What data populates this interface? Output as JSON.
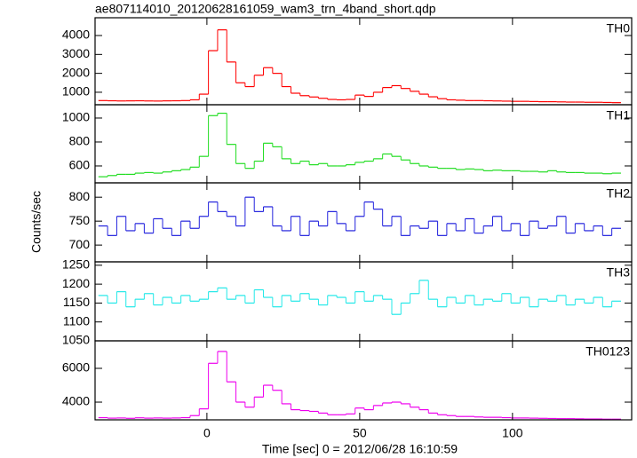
{
  "title": "ae807114010_20120628161059_wam3_trn_4band_short.qdp",
  "xlabel": "Time [sec] 0 = 2012/06/28 16:10:59",
  "ylabel": "Counts/sec",
  "chart_data": [
    {
      "type": "line",
      "annotation": "TH0",
      "color": "#ff0000",
      "xlim": [
        -36.6,
        139
      ],
      "ylim": [
        340,
        4940
      ],
      "yticks": [
        1000,
        2000,
        3000,
        4000
      ],
      "x": [
        -34,
        -31,
        -28,
        -25,
        -22,
        -19,
        -16,
        -13,
        -10,
        -7,
        -4,
        -1,
        2,
        5,
        8,
        11,
        14,
        17,
        20,
        23,
        26,
        29,
        32,
        35,
        38,
        41,
        44,
        47,
        50,
        53,
        56,
        59,
        62,
        65,
        68,
        71,
        74,
        77,
        80,
        83,
        86,
        89,
        92,
        95,
        98,
        101,
        104,
        107,
        110,
        113,
        116,
        119,
        122,
        125,
        128,
        131,
        134
      ],
      "values": [
        560,
        550,
        540,
        545,
        550,
        540,
        535,
        545,
        550,
        560,
        600,
        900,
        3200,
        4300,
        2600,
        1500,
        1300,
        1900,
        2300,
        2000,
        1300,
        950,
        820,
        750,
        680,
        620,
        600,
        620,
        850,
        780,
        1000,
        1250,
        1350,
        1200,
        1050,
        900,
        760,
        660,
        600,
        580,
        560,
        560,
        550,
        540,
        530,
        520,
        520,
        510,
        500,
        500,
        490,
        480,
        480,
        470,
        470,
        460,
        450
      ]
    },
    {
      "type": "line",
      "annotation": "TH1",
      "color": "#22dd22",
      "xlim": [
        -36.6,
        139
      ],
      "ylim": [
        459,
        1111
      ],
      "yticks": [
        600,
        800,
        1000
      ],
      "x": [
        -34,
        -31,
        -28,
        -25,
        -22,
        -19,
        -16,
        -13,
        -10,
        -7,
        -4,
        -1,
        2,
        5,
        8,
        11,
        14,
        17,
        20,
        23,
        26,
        29,
        32,
        35,
        38,
        41,
        44,
        47,
        50,
        53,
        56,
        59,
        62,
        65,
        68,
        71,
        74,
        77,
        80,
        83,
        86,
        89,
        92,
        95,
        98,
        101,
        104,
        107,
        110,
        113,
        116,
        119,
        122,
        125,
        128,
        131,
        134
      ],
      "values": [
        510,
        520,
        530,
        530,
        540,
        545,
        540,
        550,
        560,
        570,
        590,
        680,
        1020,
        1040,
        780,
        620,
        580,
        640,
        790,
        760,
        660,
        620,
        640,
        610,
        620,
        600,
        600,
        610,
        630,
        640,
        660,
        700,
        680,
        650,
        620,
        600,
        590,
        580,
        580,
        570,
        575,
        570,
        560,
        565,
        560,
        560,
        555,
        555,
        550,
        560,
        550,
        545,
        545,
        540,
        540,
        535,
        540
      ]
    },
    {
      "type": "line",
      "annotation": "TH2",
      "color": "#2222dd",
      "xlim": [
        -36.6,
        139
      ],
      "ylim": [
        665,
        830
      ],
      "yticks": [
        700,
        750,
        800
      ],
      "x": [
        -34,
        -31,
        -28,
        -25,
        -22,
        -19,
        -16,
        -13,
        -10,
        -7,
        -4,
        -1,
        2,
        5,
        8,
        11,
        14,
        17,
        20,
        23,
        26,
        29,
        32,
        35,
        38,
        41,
        44,
        47,
        50,
        53,
        56,
        59,
        62,
        65,
        68,
        71,
        74,
        77,
        80,
        83,
        86,
        89,
        92,
        95,
        98,
        101,
        104,
        107,
        110,
        113,
        116,
        119,
        122,
        125,
        128,
        131,
        134
      ],
      "values": [
        740,
        720,
        760,
        730,
        745,
        725,
        755,
        735,
        720,
        750,
        735,
        760,
        790,
        770,
        760,
        740,
        800,
        770,
        780,
        740,
        730,
        760,
        720,
        750,
        740,
        770,
        745,
        730,
        760,
        790,
        775,
        740,
        760,
        720,
        740,
        735,
        750,
        720,
        745,
        730,
        755,
        725,
        740,
        760,
        730,
        745,
        720,
        750,
        735,
        740,
        760,
        725,
        745,
        730,
        740,
        720,
        735
      ]
    },
    {
      "type": "line",
      "annotation": "TH3",
      "color": "#22e8e8",
      "xlim": [
        -36.6,
        139
      ],
      "ylim": [
        1050,
        1259
      ],
      "yticks": [
        1050,
        1100,
        1150,
        1200,
        1250
      ],
      "x": [
        -34,
        -31,
        -28,
        -25,
        -22,
        -19,
        -16,
        -13,
        -10,
        -7,
        -4,
        -1,
        2,
        5,
        8,
        11,
        14,
        17,
        20,
        23,
        26,
        29,
        32,
        35,
        38,
        41,
        44,
        47,
        50,
        53,
        56,
        59,
        62,
        65,
        68,
        71,
        74,
        77,
        80,
        83,
        86,
        89,
        92,
        95,
        98,
        101,
        104,
        107,
        110,
        113,
        116,
        119,
        122,
        125,
        128,
        131,
        134
      ],
      "values": [
        1170,
        1150,
        1180,
        1140,
        1160,
        1175,
        1145,
        1165,
        1150,
        1170,
        1155,
        1160,
        1180,
        1190,
        1160,
        1170,
        1150,
        1185,
        1165,
        1140,
        1170,
        1155,
        1175,
        1160,
        1145,
        1170,
        1165,
        1150,
        1180,
        1155,
        1170,
        1160,
        1120,
        1150,
        1175,
        1210,
        1160,
        1140,
        1165,
        1150,
        1170,
        1145,
        1160,
        1155,
        1175,
        1150,
        1165,
        1140,
        1160,
        1155,
        1170,
        1145,
        1160,
        1150,
        1165,
        1140,
        1155
      ]
    },
    {
      "type": "line",
      "annotation": "TH0123",
      "color": "#ee00ee",
      "xlim": [
        -36.6,
        139
      ],
      "ylim": [
        2950,
        7630
      ],
      "yticks": [
        4000,
        6000
      ],
      "xticks": [
        0,
        50,
        100
      ],
      "x": [
        -34,
        -31,
        -28,
        -25,
        -22,
        -19,
        -16,
        -13,
        -10,
        -7,
        -4,
        -1,
        2,
        5,
        8,
        11,
        14,
        17,
        20,
        23,
        26,
        29,
        32,
        35,
        38,
        41,
        44,
        47,
        50,
        53,
        56,
        59,
        62,
        65,
        68,
        71,
        74,
        77,
        80,
        83,
        86,
        89,
        92,
        95,
        98,
        101,
        104,
        107,
        110,
        113,
        116,
        119,
        122,
        125,
        128,
        131,
        134
      ],
      "values": [
        3080,
        3050,
        3060,
        3040,
        3070,
        3050,
        3060,
        3050,
        3060,
        3080,
        3200,
        3600,
        6300,
        7000,
        5200,
        4000,
        3700,
        4300,
        5000,
        4700,
        3900,
        3550,
        3500,
        3450,
        3350,
        3250,
        3250,
        3300,
        3650,
        3550,
        3800,
        3950,
        4000,
        3900,
        3700,
        3550,
        3350,
        3250,
        3200,
        3150,
        3150,
        3120,
        3100,
        3100,
        3080,
        3060,
        3060,
        3050,
        3040,
        3030,
        3020,
        3020,
        3010,
        3000,
        3000,
        2990,
        2990
      ]
    }
  ]
}
